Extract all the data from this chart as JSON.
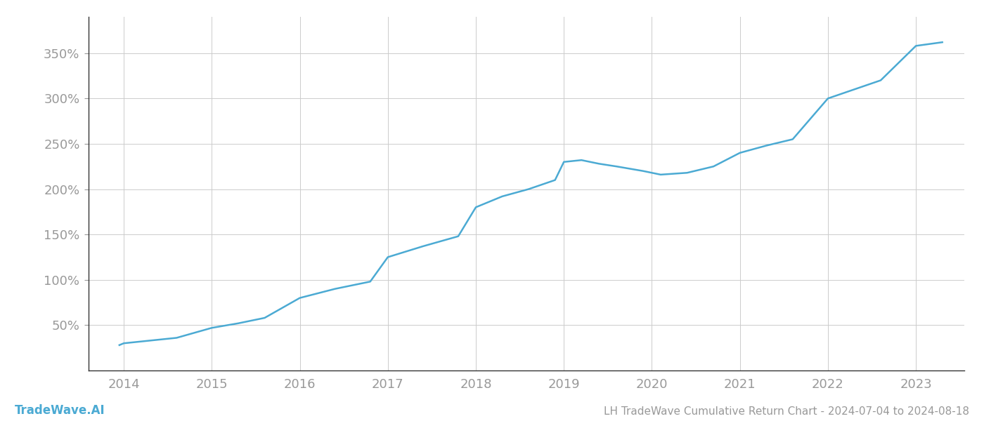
{
  "x_years": [
    2013.95,
    2014.0,
    2014.3,
    2014.6,
    2015.0,
    2015.3,
    2015.6,
    2016.0,
    2016.4,
    2016.8,
    2017.0,
    2017.4,
    2017.8,
    2018.0,
    2018.3,
    2018.6,
    2018.9,
    2019.0,
    2019.2,
    2019.4,
    2019.6,
    2019.9,
    2020.1,
    2020.4,
    2020.7,
    2021.0,
    2021.3,
    2021.6,
    2022.0,
    2022.3,
    2022.6,
    2023.0,
    2023.3
  ],
  "y_values": [
    28,
    30,
    33,
    36,
    47,
    52,
    58,
    80,
    90,
    98,
    125,
    137,
    148,
    180,
    192,
    200,
    210,
    230,
    232,
    228,
    225,
    220,
    216,
    218,
    225,
    240,
    248,
    255,
    300,
    310,
    320,
    358,
    362
  ],
  "line_color": "#4baad3",
  "line_width": 1.8,
  "background_color": "#ffffff",
  "grid_color": "#cccccc",
  "title": "LH TradeWave Cumulative Return Chart - 2024-07-04 to 2024-08-18",
  "watermark": "TradeWave.AI",
  "xlim": [
    2013.6,
    2023.55
  ],
  "ylim": [
    0,
    390
  ],
  "yticks": [
    50,
    100,
    150,
    200,
    250,
    300,
    350
  ],
  "xticks": [
    2014,
    2015,
    2016,
    2017,
    2018,
    2019,
    2020,
    2021,
    2022,
    2023
  ],
  "tick_color": "#999999",
  "tick_fontsize": 13,
  "title_fontsize": 11,
  "watermark_fontsize": 12,
  "left_spine_color": "#333333"
}
